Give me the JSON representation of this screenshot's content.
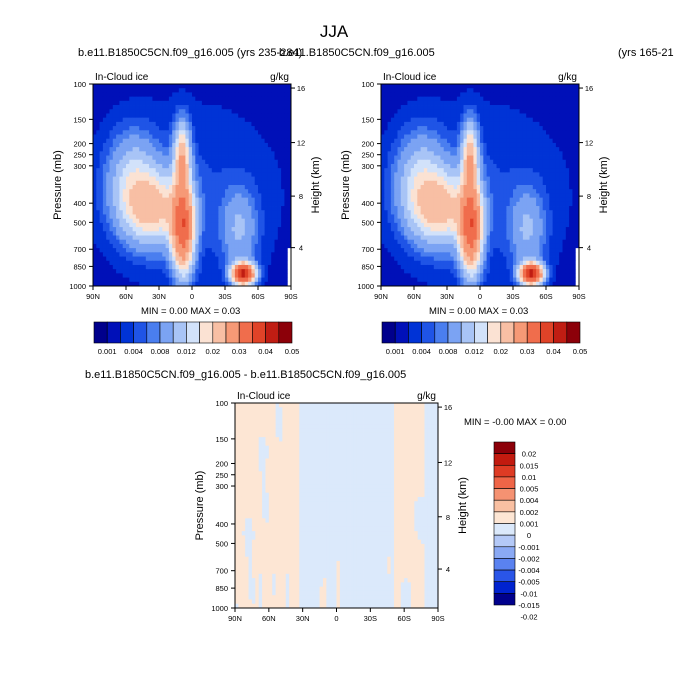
{
  "page": {
    "title": "JJA"
  },
  "colormap": {
    "fields": [
      "#00008c",
      "#0010b8",
      "#0033d6",
      "#1f54e6",
      "#4a7eef",
      "#7ba3f3",
      "#a8c4f6",
      "#d2e2fa",
      "#fbe2d3",
      "#f8bfa4",
      "#f69976",
      "#f06d4c",
      "#e04328",
      "#c01d13",
      "#8c0009"
    ],
    "diff": [
      "#00008c",
      "#0022cf",
      "#2a55e8",
      "#5a82f0",
      "#8aa9f4",
      "#b4c9f7",
      "#dbe9fb",
      "#fde6d4",
      "#f9c0a2",
      "#f59272",
      "#ef6547",
      "#de3b24",
      "#c21a0f",
      "#8c0009"
    ]
  },
  "chart_data": [
    {
      "type": "heatmap",
      "kind": "field",
      "title": "b.e11.B1850C5CN.f09_g16.005 (yrs 235-284)",
      "variable": "In-Cloud ice",
      "units": "g/kg",
      "xlabel": "",
      "ylabel": "Pressure (mb)",
      "ylabel_right": "Height (km)",
      "x_ticks": [
        "90N",
        "60N",
        "30N",
        "0",
        "30S",
        "60S",
        "90S"
      ],
      "y_ticks": [
        "100",
        "150",
        "200",
        "250",
        "300",
        "400",
        "500",
        "700",
        "850",
        "1000"
      ],
      "y_ticks_right": [
        "16",
        "12",
        "8",
        "4"
      ],
      "stats_text": "MIN =  0.00   MAX =  0.03",
      "colorbar_labels": [
        "0.001",
        "0.004",
        "0.008",
        "0.012",
        "0.02",
        "0.03",
        "0.04",
        "0.05"
      ],
      "colorbar_levels": 15
    },
    {
      "type": "heatmap",
      "kind": "field",
      "title": "b.e11.B1850C5CN.f09_g16.005",
      "title_right": "(yrs 165-21",
      "variable": "In-Cloud ice",
      "units": "g/kg",
      "xlabel": "",
      "ylabel": "Pressure (mb)",
      "ylabel_right": "Height (km)",
      "x_ticks": [
        "90N",
        "60N",
        "30N",
        "0",
        "30S",
        "60S",
        "90S"
      ],
      "y_ticks": [
        "100",
        "150",
        "200",
        "250",
        "300",
        "400",
        "500",
        "700",
        "850",
        "1000"
      ],
      "y_ticks_right": [
        "16",
        "12",
        "8",
        "4"
      ],
      "stats_text": "MIN =  0.00   MAX =  0.03",
      "colorbar_labels": [
        "0.001",
        "0.004",
        "0.008",
        "0.012",
        "0.02",
        "0.03",
        "0.04",
        "0.05"
      ],
      "colorbar_levels": 15
    },
    {
      "type": "heatmap",
      "kind": "difference",
      "title": "b.e11.B1850C5CN.f09_g16.005 - b.e11.B1850C5CN.f09_g16.005",
      "variable": "In-Cloud ice",
      "units": "g/kg",
      "xlabel": "",
      "ylabel": "Pressure (mb)",
      "ylabel_right": "Height (km)",
      "x_ticks": [
        "90N",
        "60N",
        "30N",
        "0",
        "30S",
        "60S",
        "90S"
      ],
      "y_ticks": [
        "100",
        "150",
        "200",
        "250",
        "300",
        "400",
        "500",
        "700",
        "850",
        "1000"
      ],
      "y_ticks_right": [
        "16",
        "12",
        "8",
        "4"
      ],
      "stats_text": "MIN = -0.00  MAX =  0.00",
      "colorbar_labels": [
        "0.02",
        "0.015",
        "0.01",
        "0.005",
        "0.004",
        "0.002",
        "0.001",
        "0",
        "-0.001",
        "-0.002",
        "-0.004",
        "-0.005",
        "-0.01",
        "-0.015",
        "-0.02"
      ],
      "colorbar_levels": 14
    }
  ]
}
